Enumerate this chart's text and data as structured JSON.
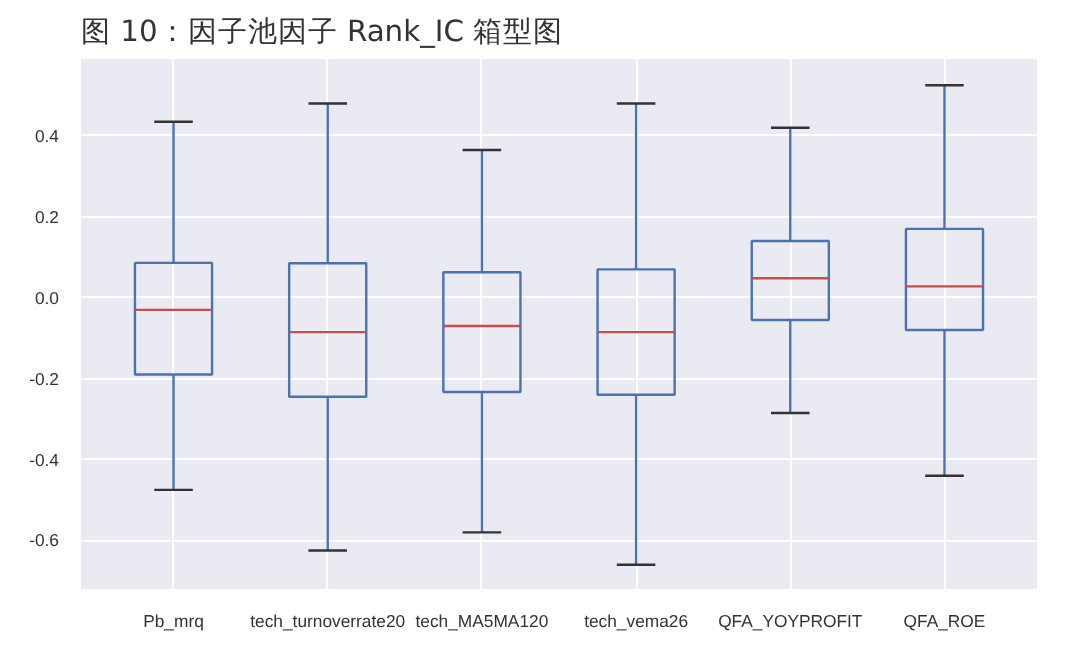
{
  "chart_data": {
    "type": "box",
    "title": "图 10：因子池因子 Rank_IC 箱型图",
    "categories": [
      "Pb_mrq",
      "tech_turnoverrate20",
      "tech_MA5MA120",
      "tech_vema26",
      "QFA_YOYPROFIT",
      "QFA_ROE"
    ],
    "boxes": [
      {
        "low": -0.475,
        "q1": -0.19,
        "median": -0.03,
        "q3": 0.086,
        "high": 0.435
      },
      {
        "low": -0.625,
        "q1": -0.245,
        "median": -0.085,
        "q3": 0.085,
        "high": 0.48
      },
      {
        "low": -0.58,
        "q1": -0.233,
        "median": -0.07,
        "q3": 0.063,
        "high": 0.365
      },
      {
        "low": -0.66,
        "q1": -0.24,
        "median": -0.085,
        "q3": 0.07,
        "high": 0.48
      },
      {
        "low": -0.285,
        "q1": -0.055,
        "median": 0.048,
        "q3": 0.14,
        "high": 0.42
      },
      {
        "low": -0.44,
        "q1": -0.08,
        "median": 0.028,
        "q3": 0.17,
        "high": 0.525
      }
    ],
    "color": "#4c72b0",
    "ylim": [
      -0.72,
      0.59
    ],
    "yticks": [
      {
        "value": -0.6,
        "label": "-0.6"
      },
      {
        "value": -0.4,
        "label": "-0.4"
      },
      {
        "value": -0.2,
        "label": "-0.2"
      },
      {
        "value": 0,
        "label": "0.0"
      },
      {
        "value": 0.2,
        "label": "0.2"
      },
      {
        "value": 0.4,
        "label": "0.4"
      }
    ],
    "grid": true
  }
}
